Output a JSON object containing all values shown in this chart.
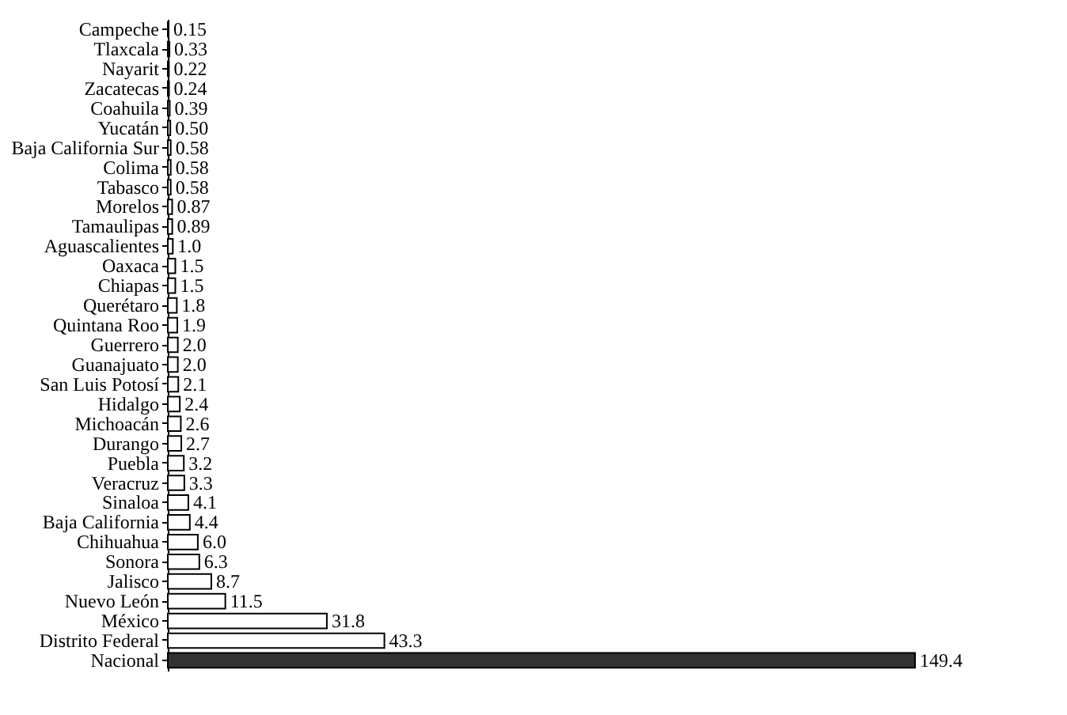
{
  "chart_data": {
    "type": "bar",
    "orientation": "horizontal",
    "categories": [
      "Campeche",
      "Tlaxcala",
      "Nayarit",
      "Zacatecas",
      "Coahuila",
      "Yucatán",
      "Baja California Sur",
      "Colima",
      "Tabasco",
      "Morelos",
      "Tamaulipas",
      "Aguascalientes",
      "Oaxaca",
      "Chiapas",
      "Querétaro",
      "Quintana Roo",
      "Guerrero",
      "Guanajuato",
      "San Luis Potosí",
      "Hidalgo",
      "Michoacán",
      "Durango",
      "Puebla",
      "Veracruz",
      "Sinaloa",
      "Baja California",
      "Chihuahua",
      "Sonora",
      "Jalisco",
      "Nuevo León",
      "México",
      "Distrito Federal",
      "Nacional"
    ],
    "values": [
      0.15,
      0.33,
      0.22,
      0.24,
      0.39,
      0.5,
      0.58,
      0.58,
      0.58,
      0.87,
      0.89,
      1.0,
      1.5,
      1.5,
      1.8,
      1.9,
      2.0,
      2.0,
      2.1,
      2.4,
      2.6,
      2.7,
      3.2,
      3.3,
      4.1,
      4.4,
      6.0,
      6.3,
      8.7,
      11.5,
      31.8,
      43.3,
      149.4
    ],
    "value_labels": [
      "0.15",
      "0.33",
      "0.22",
      "0.24",
      "0.39",
      "0.50",
      "0.58",
      "0.58",
      "0.58",
      "0.87",
      "0.89",
      "1.0",
      "1.5",
      "1.5",
      "1.8",
      "1.9",
      "2.0",
      "2.0",
      "2.1",
      "2.4",
      "2.6",
      "2.7",
      "3.2",
      "3.3",
      "4.1",
      "4.4",
      "6.0",
      "6.3",
      "8.7",
      "11.5",
      "31.8",
      "43.3",
      "149.4"
    ],
    "colors": [
      "#ffffff",
      "#ffffff",
      "#ffffff",
      "#ffffff",
      "#ffffff",
      "#ffffff",
      "#ffffff",
      "#ffffff",
      "#ffffff",
      "#ffffff",
      "#ffffff",
      "#ffffff",
      "#ffffff",
      "#ffffff",
      "#ffffff",
      "#ffffff",
      "#ffffff",
      "#ffffff",
      "#ffffff",
      "#ffffff",
      "#ffffff",
      "#ffffff",
      "#ffffff",
      "#ffffff",
      "#ffffff",
      "#ffffff",
      "#ffffff",
      "#ffffff",
      "#ffffff",
      "#ffffff",
      "#ffffff",
      "#ffffff",
      "#333333"
    ],
    "xlim": [
      0,
      149.4
    ],
    "tick_labels": "y",
    "grid": false
  }
}
